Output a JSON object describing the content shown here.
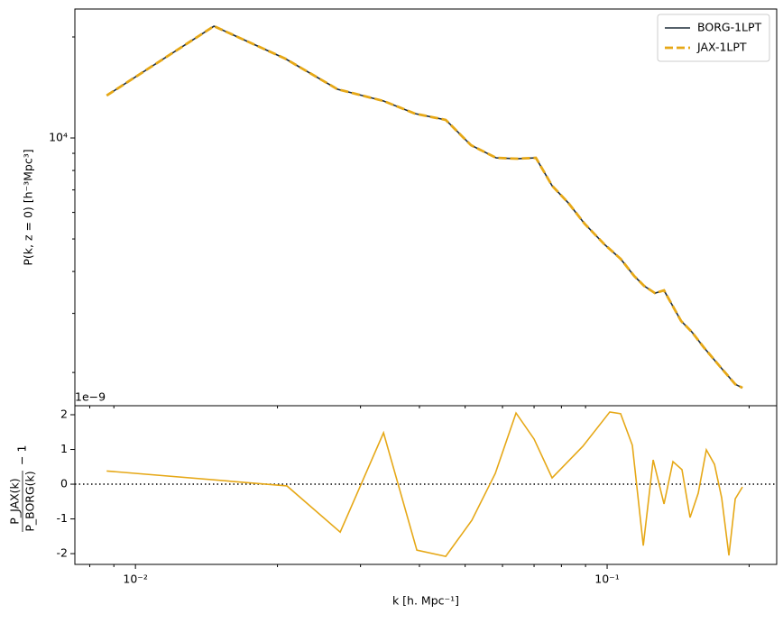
{
  "chart_data": [
    {
      "type": "line",
      "ylabel": "P(k, z = 0) [h⁻³Mpc³]",
      "xscale": "log",
      "yscale": "log",
      "xlim": [
        0.00744,
        0.2288
      ],
      "ylim": [
        1592,
        24230
      ],
      "xminorticks": [
        0.008,
        0.009,
        0.02,
        0.03,
        0.04,
        0.05,
        0.06,
        0.07,
        0.08,
        0.09,
        0.2
      ],
      "yticks": [
        {
          "value": 10000,
          "label": "10⁴"
        }
      ],
      "yminorticks": [
        2000,
        3000,
        4000,
        5000,
        6000,
        7000,
        8000,
        9000,
        20000
      ],
      "legend": "upper right",
      "x": [
        0.00869,
        0.01467,
        0.02077,
        0.02682,
        0.03357,
        0.03914,
        0.04548,
        0.05144,
        0.05818,
        0.06438,
        0.07062,
        0.07644,
        0.08274,
        0.08957,
        0.09869,
        0.1068,
        0.1141,
        0.1198,
        0.1263,
        0.132,
        0.1435,
        0.1512,
        0.1602,
        0.1681,
        0.1765,
        0.1869,
        0.1936
      ],
      "series": [
        {
          "name": "BORG-1LPT",
          "color": "#1f2d3a",
          "style": "solid",
          "values": [
            13380,
            21540,
            17240,
            13970,
            12890,
            11820,
            11320,
            9517,
            8726,
            8673,
            8726,
            7205,
            6404,
            5554,
            4818,
            4362,
            3879,
            3623,
            3448,
            3513,
            2847,
            2642,
            2378,
            2195,
            2025,
            1845,
            1800
          ]
        },
        {
          "name": "JAX-1LPT",
          "color": "#e6a817",
          "style": "dashed",
          "values": [
            13380,
            21540,
            17240,
            13970,
            12890,
            11820,
            11320,
            9517,
            8726,
            8673,
            8726,
            7205,
            6404,
            5554,
            4818,
            4362,
            3879,
            3623,
            3448,
            3513,
            2847,
            2642,
            2378,
            2195,
            2025,
            1845,
            1800
          ]
        }
      ]
    },
    {
      "type": "line",
      "offset_label": "1e−9",
      "ylabel_numerator": "P_JAX(k)",
      "ylabel_denominator": "P_BORG(k)",
      "ylabel_suffix": "− 1",
      "xlabel": "k [h. Mpc⁻¹]",
      "xscale": "log",
      "yscale": "linear",
      "xlim": [
        0.00744,
        0.2288
      ],
      "ylim": [
        -2.31,
        2.26
      ],
      "xticks": [
        {
          "value": 0.01,
          "label": "10⁻²"
        },
        {
          "value": 0.1,
          "label": "10⁻¹"
        }
      ],
      "xminorticks": [
        0.008,
        0.009,
        0.02,
        0.03,
        0.04,
        0.05,
        0.06,
        0.07,
        0.08,
        0.09,
        0.2
      ],
      "yticks": [
        -2,
        -1,
        0,
        1,
        2
      ],
      "hline": 0,
      "x": [
        0.00869,
        0.02095,
        0.02717,
        0.03357,
        0.0395,
        0.04548,
        0.05166,
        0.05793,
        0.0641,
        0.07,
        0.07644,
        0.08878,
        0.1013,
        0.1068,
        0.1131,
        0.1193,
        0.1252,
        0.132,
        0.1379,
        0.1441,
        0.1499,
        0.156,
        0.1623,
        0.1689,
        0.1749,
        0.1812,
        0.1869,
        0.1936
      ],
      "series": [
        {
          "color": "#e6a817",
          "style": "solid",
          "values": [
            0.38,
            -0.05,
            -1.38,
            1.48,
            -1.9,
            -2.08,
            -1.04,
            0.31,
            2.05,
            1.3,
            0.18,
            1.09,
            2.08,
            2.03,
            1.12,
            -1.77,
            0.7,
            -0.57,
            0.65,
            0.42,
            -0.96,
            -0.26,
            0.99,
            0.57,
            -0.39,
            -2.05,
            -0.42,
            -0.08
          ]
        }
      ]
    }
  ]
}
